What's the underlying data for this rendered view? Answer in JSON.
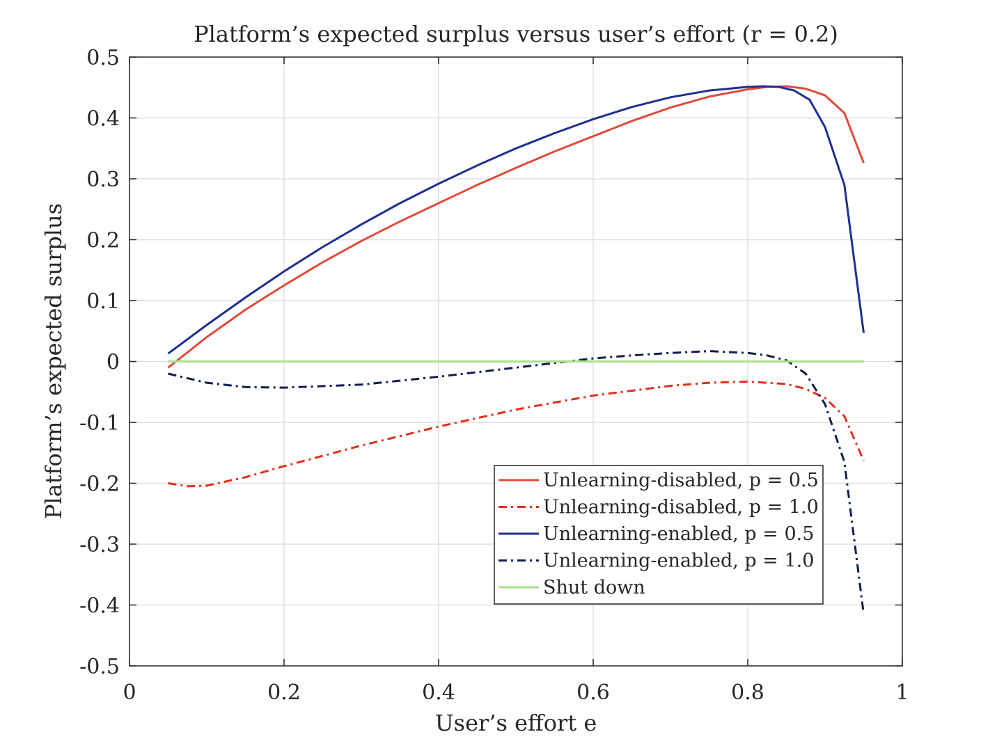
{
  "chart_data": {
    "type": "line",
    "title": "Platform’s expected surplus versus user’s effort (r = 0.2)",
    "xlabel": "User’s effort e",
    "ylabel": "Platform’s expected surplus",
    "xlim": [
      0,
      1
    ],
    "ylim": [
      -0.5,
      0.5
    ],
    "x_ticks": [
      "0",
      "0.2",
      "0.4",
      "0.6",
      "0.8",
      "1"
    ],
    "y_ticks": [
      "-0.5",
      "-0.4",
      "-0.3",
      "-0.2",
      "-0.1",
      "0",
      "0.1",
      "0.2",
      "0.3",
      "0.4",
      "0.5"
    ],
    "grid": true,
    "legend_position": "lower-right",
    "series": [
      {
        "name": "Unlearning-disabled, p = 0.5",
        "color": "#e04b3a",
        "style": "solid",
        "points": [
          [
            0.05,
            -0.01
          ],
          [
            0.075,
            0.015
          ],
          [
            0.1,
            0.04
          ],
          [
            0.15,
            0.085
          ],
          [
            0.2,
            0.125
          ],
          [
            0.25,
            0.163
          ],
          [
            0.3,
            0.198
          ],
          [
            0.35,
            0.23
          ],
          [
            0.4,
            0.26
          ],
          [
            0.45,
            0.29
          ],
          [
            0.5,
            0.318
          ],
          [
            0.55,
            0.345
          ],
          [
            0.6,
            0.37
          ],
          [
            0.65,
            0.395
          ],
          [
            0.7,
            0.417
          ],
          [
            0.75,
            0.435
          ],
          [
            0.8,
            0.447
          ],
          [
            0.825,
            0.451
          ],
          [
            0.85,
            0.452
          ],
          [
            0.875,
            0.448
          ],
          [
            0.9,
            0.437
          ],
          [
            0.925,
            0.408
          ],
          [
            0.95,
            0.326
          ]
        ]
      },
      {
        "name": "Unlearning-disabled, p = 1.0",
        "color": "#e0301a",
        "style": "dashdot",
        "points": [
          [
            0.05,
            -0.2
          ],
          [
            0.075,
            -0.205
          ],
          [
            0.1,
            -0.204
          ],
          [
            0.15,
            -0.19
          ],
          [
            0.2,
            -0.172
          ],
          [
            0.3,
            -0.138
          ],
          [
            0.4,
            -0.107
          ],
          [
            0.5,
            -0.079
          ],
          [
            0.6,
            -0.056
          ],
          [
            0.7,
            -0.04
          ],
          [
            0.75,
            -0.035
          ],
          [
            0.8,
            -0.033
          ],
          [
            0.85,
            -0.037
          ],
          [
            0.875,
            -0.045
          ],
          [
            0.9,
            -0.06
          ],
          [
            0.925,
            -0.09
          ],
          [
            0.95,
            -0.163
          ]
        ]
      },
      {
        "name": "Unlearning-enabled, p = 0.5",
        "color": "#1f2f8f",
        "style": "solid",
        "points": [
          [
            0.05,
            0.013
          ],
          [
            0.1,
            0.06
          ],
          [
            0.15,
            0.105
          ],
          [
            0.2,
            0.148
          ],
          [
            0.25,
            0.188
          ],
          [
            0.3,
            0.225
          ],
          [
            0.35,
            0.26
          ],
          [
            0.4,
            0.292
          ],
          [
            0.45,
            0.322
          ],
          [
            0.5,
            0.35
          ],
          [
            0.55,
            0.375
          ],
          [
            0.6,
            0.398
          ],
          [
            0.65,
            0.418
          ],
          [
            0.7,
            0.434
          ],
          [
            0.75,
            0.445
          ],
          [
            0.8,
            0.451
          ],
          [
            0.82,
            0.452
          ],
          [
            0.84,
            0.451
          ],
          [
            0.86,
            0.445
          ],
          [
            0.88,
            0.43
          ],
          [
            0.9,
            0.385
          ],
          [
            0.925,
            0.29
          ],
          [
            0.95,
            0.047
          ]
        ]
      },
      {
        "name": "Unlearning-enabled, p = 1.0",
        "color": "#0e1e4f",
        "style": "dashdot",
        "points": [
          [
            0.05,
            -0.02
          ],
          [
            0.1,
            -0.035
          ],
          [
            0.15,
            -0.042
          ],
          [
            0.2,
            -0.043
          ],
          [
            0.3,
            -0.038
          ],
          [
            0.4,
            -0.025
          ],
          [
            0.5,
            -0.01
          ],
          [
            0.6,
            0.005
          ],
          [
            0.65,
            0.01
          ],
          [
            0.7,
            0.014
          ],
          [
            0.75,
            0.017
          ],
          [
            0.8,
            0.014
          ],
          [
            0.825,
            0.01
          ],
          [
            0.85,
            0.002
          ],
          [
            0.875,
            -0.02
          ],
          [
            0.9,
            -0.07
          ],
          [
            0.925,
            -0.165
          ],
          [
            0.95,
            -0.415
          ]
        ]
      },
      {
        "name": "Shut down",
        "color": "#a9e08a",
        "style": "solid",
        "points": [
          [
            0.05,
            0
          ],
          [
            0.95,
            0
          ]
        ]
      }
    ]
  }
}
